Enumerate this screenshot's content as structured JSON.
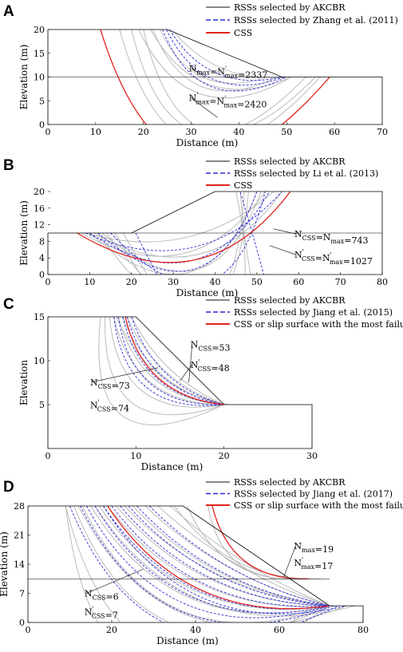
{
  "chart_data": [
    {
      "panel": "A",
      "type": "line",
      "xlabel": "Distance (m)",
      "ylabel": "Elevation (m)",
      "xlim": [
        0,
        70
      ],
      "ylim": [
        0,
        20
      ],
      "xticks": [
        0,
        10,
        20,
        30,
        40,
        50,
        60,
        70
      ],
      "yticks": [
        0,
        5,
        10,
        15,
        20
      ],
      "slope": [
        [
          0,
          20
        ],
        [
          25,
          20
        ],
        [
          49,
          10
        ],
        [
          70,
          10
        ],
        [
          70,
          0
        ],
        [
          0,
          0
        ],
        [
          0,
          20
        ]
      ],
      "extra_lines": [
        [
          [
            0,
            10
          ],
          [
            49,
            10
          ]
        ]
      ],
      "legend": [
        "RSSs selected by AKCBR",
        "RSSs selected by Zhang et al. (2011)",
        "CSS"
      ],
      "gray_arcs": [
        [
          19,
          20,
          51,
          10,
          0.6
        ],
        [
          21.5,
          20,
          51,
          10,
          0.5
        ],
        [
          22,
          20,
          48,
          10,
          0.6
        ],
        [
          23.5,
          20,
          46,
          10,
          0.5
        ],
        [
          26,
          20,
          50,
          10,
          0.3
        ],
        [
          17.5,
          20,
          54,
          10,
          1.0
        ],
        [
          20,
          20,
          56,
          10,
          1.0
        ],
        [
          15,
          20,
          57,
          10,
          1.0
        ]
      ],
      "blue_arcs": [
        [
          24,
          20,
          50,
          10,
          0.6
        ],
        [
          24.8,
          20,
          49.5,
          10,
          0.5
        ],
        [
          25.5,
          20,
          49,
          10,
          0.4
        ]
      ],
      "red_arcs": [
        [
          11,
          20,
          59,
          10,
          1.0
        ]
      ],
      "annotations": [
        {
          "text": "N",
          "sub": "max",
          "sup": "",
          "mid": "=N",
          "sub2": "max",
          "sup2": "'",
          "value": "=2337",
          "x": 33,
          "y": 10,
          "tx": 29.5,
          "ty": 11.2
        },
        {
          "text": "N",
          "sub": "max",
          "sup": "'",
          "mid": "=N",
          "sub2": "max",
          "sup2": "'",
          "value": "=2420",
          "x": 35.5,
          "y": 1.5,
          "tx": 29.5,
          "ty": 5
        }
      ]
    },
    {
      "panel": "B",
      "type": "line",
      "xlabel": "Distance (m)",
      "ylabel": "Elevation (m)",
      "xlim": [
        0,
        80
      ],
      "ylim": [
        0,
        20
      ],
      "xticks": [
        0,
        10,
        20,
        30,
        40,
        50,
        60,
        70,
        80
      ],
      "yticks": [
        0,
        4,
        8,
        12,
        16,
        20
      ],
      "slope": [
        [
          0,
          10
        ],
        [
          20,
          10
        ],
        [
          40,
          20
        ],
        [
          80,
          20
        ],
        [
          80,
          0
        ],
        [
          0,
          0
        ],
        [
          0,
          10
        ]
      ],
      "extra_lines": [
        [
          [
            20,
            10
          ],
          [
            80,
            10
          ]
        ]
      ],
      "legend": [
        "RSSs selected by AKCBR",
        "RSSs selected by  Li et al. (2013)",
        "CSS"
      ],
      "gray_arcs": [
        [
          8,
          10,
          52,
          20,
          0.5
        ],
        [
          10,
          10,
          50,
          20,
          0.8
        ],
        [
          12,
          10,
          48,
          20,
          1.5
        ],
        [
          14,
          10,
          47,
          20,
          1.5
        ],
        [
          9,
          10,
          54,
          20,
          0.3
        ],
        [
          16,
          10,
          46,
          20,
          2.5
        ],
        [
          18,
          10,
          45,
          20,
          3.5
        ],
        [
          11,
          10,
          56,
          20,
          0.5
        ],
        [
          13,
          10,
          51,
          20,
          0.8
        ]
      ],
      "blue_arcs": [
        [
          10,
          10,
          53,
          20,
          0.6
        ],
        [
          15,
          10,
          52,
          20,
          1.0
        ],
        [
          12,
          10,
          50,
          20,
          0.8
        ],
        [
          21,
          10,
          46,
          20,
          6
        ],
        [
          9,
          10,
          56,
          20,
          0.4
        ]
      ],
      "red_arcs": [
        [
          7,
          10,
          58,
          20,
          0.5
        ]
      ],
      "annotations": [
        {
          "text": "N",
          "sub": "CSS",
          "sup": "",
          "mid": "=N",
          "sub2": "max",
          "sup2": "",
          "value": "=743",
          "x": 54,
          "y": 11,
          "tx": 59,
          "ty": 9
        },
        {
          "text": "N",
          "sub": "CSS",
          "sup": "'",
          "mid": "=N",
          "sub2": "max",
          "sup2": "'",
          "value": "=1027",
          "x": 53,
          "y": 7,
          "tx": 59,
          "ty": 4
        }
      ]
    },
    {
      "panel": "C",
      "type": "line",
      "xlabel": "Distance (m)",
      "ylabel": "Elevation",
      "xlim": [
        0,
        30
      ],
      "ylim": [
        0,
        15
      ],
      "xticks": [
        0,
        10,
        20,
        30
      ],
      "yticks": [
        5,
        10,
        15
      ],
      "slope": [
        [
          0,
          15
        ],
        [
          10,
          15
        ],
        [
          20,
          5
        ],
        [
          30,
          5
        ],
        [
          30,
          0
        ],
        [
          0,
          0
        ],
        [
          0,
          15
        ]
      ],
      "extra_lines": [],
      "legend": [
        "RSSs selected by AKCBR",
        "RSSs selected by Jiang et al. (2015)",
        "CSS or slip surface with the most failures"
      ],
      "gray_arcs": [
        [
          6.5,
          15,
          20,
          5,
          0.8
        ],
        [
          7,
          15,
          20,
          5,
          0.6
        ],
        [
          7.5,
          15,
          20,
          5,
          0.45
        ],
        [
          8,
          15,
          20,
          5,
          0.4
        ],
        [
          8.5,
          15,
          20,
          5,
          0.3
        ],
        [
          9,
          15,
          20,
          5,
          0.25
        ],
        [
          9.5,
          15,
          20,
          5,
          0.2
        ],
        [
          6,
          15,
          20,
          5,
          1.0
        ],
        [
          7.8,
          15,
          20.5,
          5,
          0.3
        ]
      ],
      "blue_arcs": [
        [
          7.5,
          15,
          20,
          5,
          0.55
        ],
        [
          8,
          15,
          20,
          5,
          0.5
        ],
        [
          8.5,
          15,
          20,
          5,
          0.4
        ],
        [
          9,
          15,
          20,
          5,
          0.35
        ],
        [
          9.5,
          15,
          20,
          5,
          0.3
        ]
      ],
      "red_arcs": [
        [
          8.8,
          15,
          20,
          5,
          0.4
        ]
      ],
      "annotations": [
        {
          "text": "N",
          "sub": "CSS",
          "sup": "",
          "mid": "",
          "sub2": "",
          "sup2": "",
          "value": "=53",
          "x": 16,
          "y": 7.5,
          "tx": 16.2,
          "ty": 11.5
        },
        {
          "text": "N",
          "sub": "CSS",
          "sup": "'",
          "mid": "",
          "sub2": "",
          "sup2": "",
          "value": "=48",
          "x": 15,
          "y": 7.7,
          "tx": 16.2,
          "ty": 9.2
        },
        {
          "text": "N",
          "sub": "CSS",
          "sup": "",
          "mid": "",
          "sub2": "",
          "sup2": "",
          "value": "=73",
          "x": 12.5,
          "y": 9.2,
          "tx": 4.8,
          "ty": 7.2
        },
        {
          "text": "N",
          "sub": "CSS",
          "sup": "'",
          "mid": "",
          "sub2": "",
          "sup2": "",
          "value": "=74",
          "x": 0,
          "y": 0,
          "tx": 4.8,
          "ty": 4.6
        }
      ]
    },
    {
      "panel": "D",
      "type": "line",
      "xlabel": "Distance (m)",
      "ylabel": "Elevation (m)",
      "xlim": [
        0,
        80
      ],
      "ylim": [
        0,
        28
      ],
      "xticks": [
        0,
        20,
        40,
        60,
        80
      ],
      "yticks": [
        0,
        7,
        14,
        21,
        28
      ],
      "slope": [
        [
          0,
          28
        ],
        [
          37,
          28
        ],
        [
          72,
          4
        ],
        [
          80,
          4
        ],
        [
          80,
          0
        ],
        [
          0,
          0
        ],
        [
          0,
          28
        ]
      ],
      "extra_lines": [
        [
          [
            0,
            10.5
          ],
          [
            72,
            10.5
          ]
        ]
      ],
      "legend": [
        "RSSs selected by AKCBR",
        "RSSs selected by Jiang et al. (2017)",
        "CSS or slip surface with the most failures"
      ],
      "gray_arcs": [
        [
          9,
          28,
          72,
          4,
          0.8
        ],
        [
          11,
          28,
          72,
          4,
          0.6
        ],
        [
          13,
          28,
          72,
          4,
          0.5
        ],
        [
          15,
          28,
          72,
          4,
          0.4
        ],
        [
          17,
          28,
          72,
          4,
          0.35
        ],
        [
          19,
          28,
          72,
          4,
          0.3
        ],
        [
          21,
          28,
          72,
          4,
          0.25
        ],
        [
          23,
          28,
          72,
          4,
          0.2
        ],
        [
          25,
          28,
          72,
          4,
          0.2
        ],
        [
          28,
          28,
          72,
          4,
          0.15
        ],
        [
          31,
          28,
          72,
          4,
          0.12
        ],
        [
          34,
          28,
          72,
          4,
          0.1
        ],
        [
          12,
          28,
          76,
          4,
          0.5
        ],
        [
          16,
          28,
          78,
          4,
          0.4
        ],
        [
          35,
          28,
          70,
          10.5,
          0.3
        ],
        [
          38,
          28,
          67,
          10.5,
          0.4
        ],
        [
          43,
          28,
          65,
          10.5,
          0.5
        ],
        [
          9,
          28,
          68,
          4,
          1.0
        ]
      ],
      "blue_arcs": [
        [
          10,
          28,
          74,
          4,
          0.6
        ],
        [
          12.5,
          28,
          73,
          4,
          0.5
        ],
        [
          14,
          28,
          72,
          4,
          0.45
        ],
        [
          16,
          28,
          72,
          4,
          0.4
        ],
        [
          18,
          28,
          72,
          4,
          0.35
        ],
        [
          20,
          28,
          72,
          4,
          0.3
        ],
        [
          22,
          28,
          72,
          4,
          0.25
        ],
        [
          24,
          28,
          72,
          4,
          0.22
        ],
        [
          26,
          28,
          72,
          4,
          0.2
        ],
        [
          29,
          28,
          72,
          4,
          0.16
        ],
        [
          18,
          28,
          76,
          4,
          0.4
        ]
      ],
      "red_arcs": [
        [
          19,
          28,
          72,
          4,
          0.35
        ],
        [
          44,
          28,
          67,
          10.5,
          0.45
        ]
      ],
      "annotations": [
        {
          "text": "N",
          "sub": "max",
          "sup": "",
          "mid": "",
          "sub2": "",
          "sup2": "",
          "value": "=19",
          "x": 61,
          "y": 10.8,
          "tx": 63.5,
          "ty": 17.6
        },
        {
          "text": "N",
          "sub": "max",
          "sup": "'",
          "mid": "",
          "sub2": "",
          "sup2": "",
          "value": "=17",
          "x": 0,
          "y": 0,
          "tx": 63.5,
          "ty": 13.6
        },
        {
          "text": "N",
          "sub": "CSS",
          "sup": "",
          "mid": "",
          "sub2": "",
          "sup2": "",
          "value": "=6",
          "x": 27.5,
          "y": 12.8,
          "tx": 13.5,
          "ty": 6.2
        },
        {
          "text": "N",
          "sub": "CSS",
          "sup": "'",
          "mid": "",
          "sub2": "",
          "sup2": "",
          "value": "=7",
          "x": 0,
          "y": 0,
          "tx": 13.5,
          "ty": 1.8
        }
      ]
    }
  ]
}
